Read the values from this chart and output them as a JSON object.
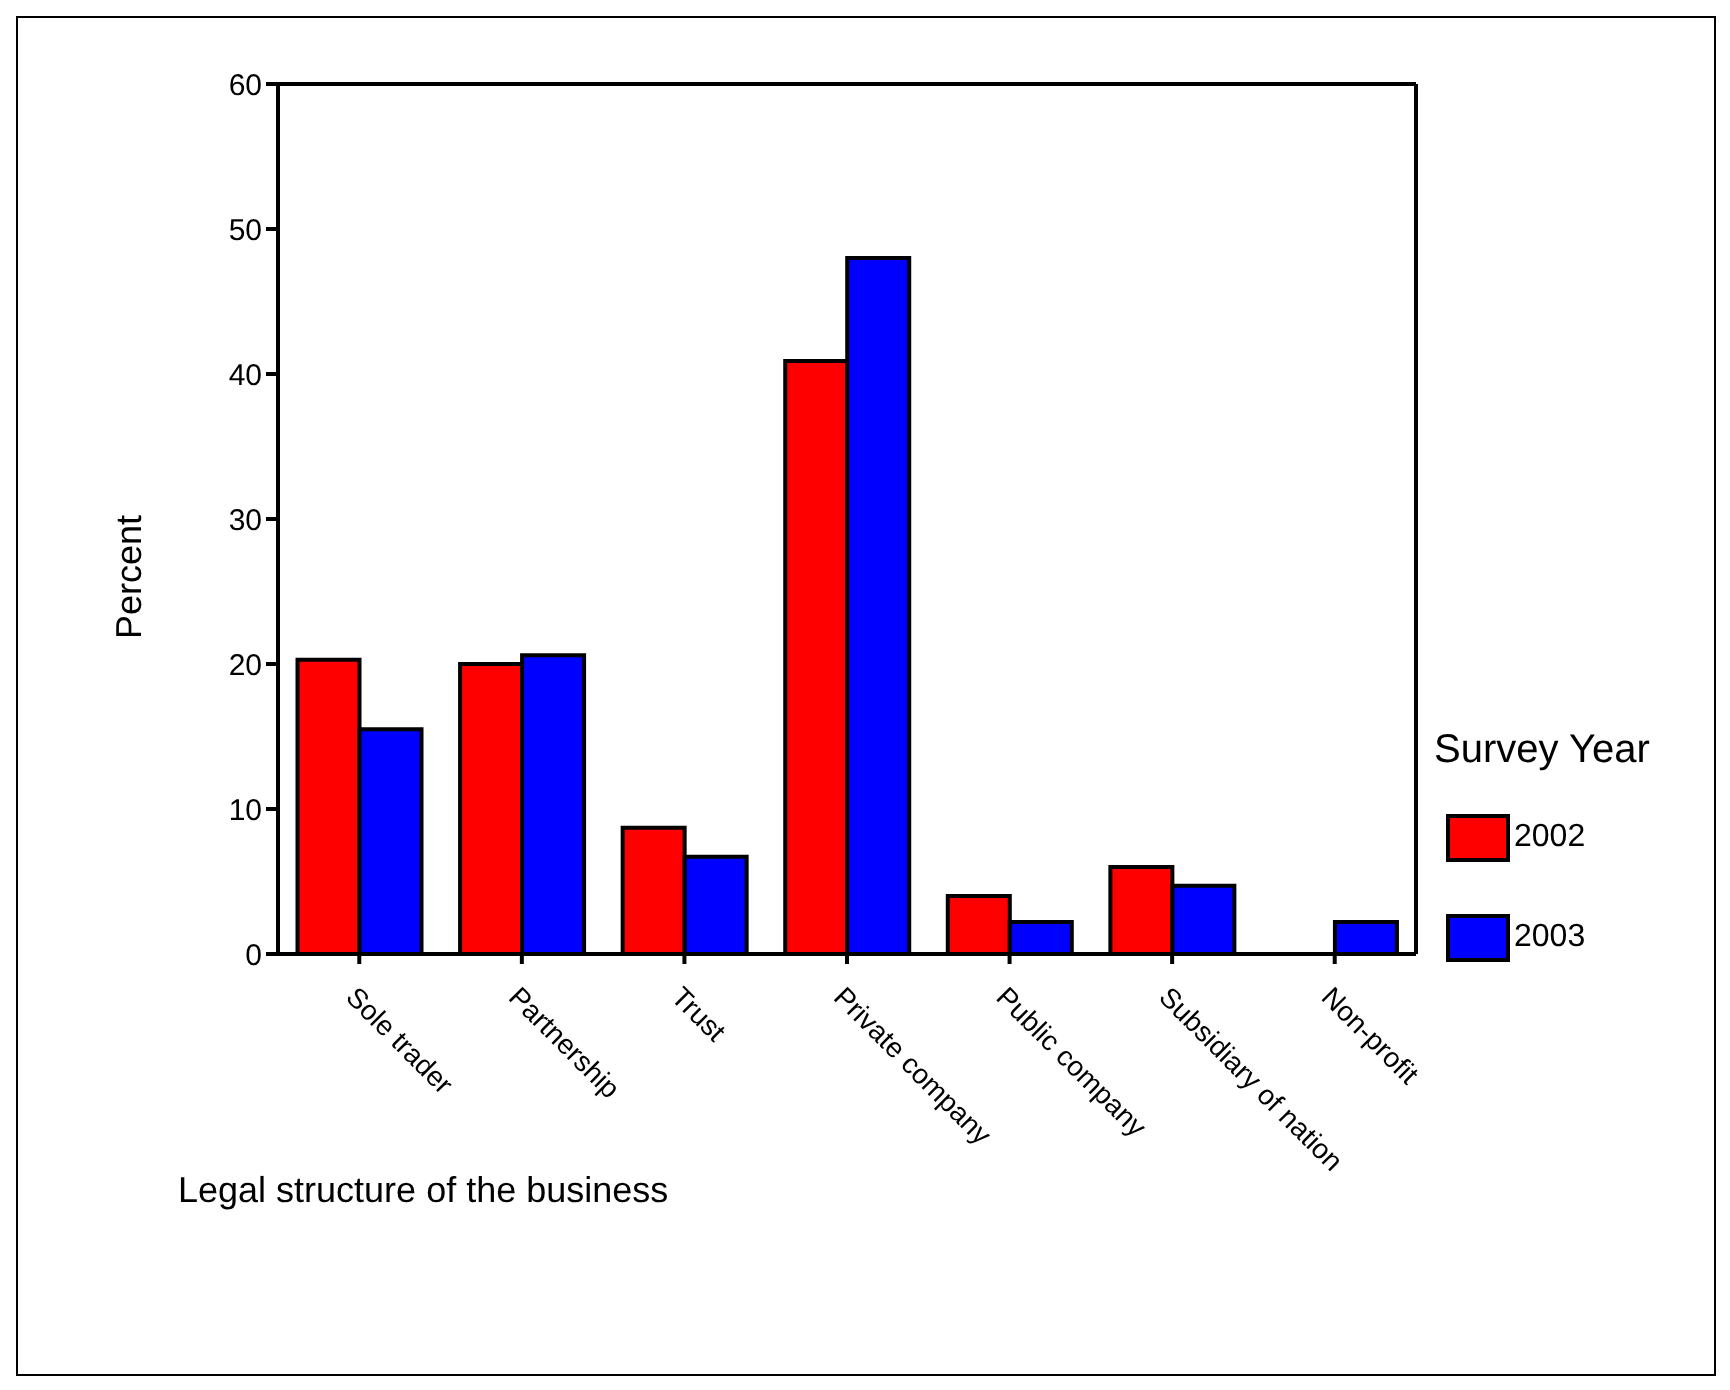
{
  "chart_data": {
    "type": "bar",
    "xlabel": "Legal structure of the business",
    "ylabel": "Percent",
    "legend_title": "Survey Year",
    "categories": [
      "Sole trader",
      "Partnership",
      "Trust",
      "Private company",
      "Public company",
      "Subsidiary of nation",
      "Non-profit"
    ],
    "series": [
      {
        "name": "2002",
        "color": "#ff0000",
        "values": [
          20.3,
          20.0,
          8.7,
          40.9,
          4.0,
          6.0,
          null
        ]
      },
      {
        "name": "2003",
        "color": "#0000ff",
        "values": [
          15.5,
          20.6,
          6.7,
          48.0,
          2.2,
          4.7,
          2.2
        ]
      }
    ],
    "ylim": [
      0,
      60
    ],
    "yticks": [
      0,
      10,
      20,
      30,
      40,
      50,
      60
    ],
    "grid": false,
    "legend": "right"
  }
}
